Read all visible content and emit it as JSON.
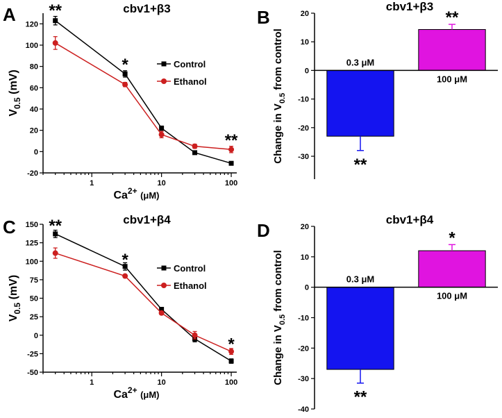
{
  "chart_data": [
    {
      "panel": "A",
      "type": "line",
      "title": "cbv1+β3",
      "xlabel": {
        "main": "Ca",
        "sup": "2+",
        "unit": "(μM)"
      },
      "ylabel": {
        "main": "V",
        "sub": "0.5",
        "unit": " (mV)"
      },
      "xscale": "log",
      "xlim": [
        0.2,
        120
      ],
      "ylim": [
        -20,
        130
      ],
      "xticks": [
        1,
        10,
        100
      ],
      "yticks": [
        -20,
        0,
        20,
        40,
        60,
        80,
        100,
        120
      ],
      "legend": "right",
      "series": [
        {
          "name": "Control",
          "color": "#000000",
          "marker": "square",
          "x": [
            0.3,
            3,
            10,
            30,
            100
          ],
          "y": [
            123,
            73,
            22,
            -1,
            -11
          ],
          "err": [
            4,
            3,
            2,
            1,
            1
          ]
        },
        {
          "name": "Ethanol",
          "color": "#cc1f1f",
          "marker": "circle",
          "x": [
            0.3,
            3,
            10,
            30,
            100
          ],
          "y": [
            102,
            63,
            16,
            5,
            2
          ],
          "err": [
            6,
            2,
            3,
            2,
            3
          ]
        }
      ],
      "annotations": [
        {
          "text": "**",
          "x": 0.3,
          "y": 134
        },
        {
          "text": "*",
          "x": 3,
          "y": 83
        },
        {
          "text": "**",
          "x": 100,
          "y": 12
        }
      ]
    },
    {
      "panel": "B",
      "type": "bar",
      "title": "cbv1+β3",
      "ylabel": {
        "pre": "Change in V",
        "sub": "0.5",
        "post": " from control"
      },
      "ylim": [
        -38,
        20
      ],
      "yticks": [
        -30,
        -20,
        -10,
        0,
        10,
        20
      ],
      "categories": [
        "0.3 μM",
        "100 μM"
      ],
      "values": [
        -23,
        14.3
      ],
      "errors": [
        5,
        1.8
      ],
      "colors": [
        "#1414f0",
        "#e014e0"
      ],
      "annotations": [
        "**",
        "**"
      ]
    },
    {
      "panel": "C",
      "type": "line",
      "title": "cbv1+β4",
      "xlabel": {
        "main": "Ca",
        "sup": "2+",
        "unit": "(μM)"
      },
      "ylabel": {
        "main": "V",
        "sub": "0.5",
        "unit": " (mV)"
      },
      "xscale": "log",
      "xlim": [
        0.2,
        120
      ],
      "ylim": [
        -50,
        150
      ],
      "xticks": [
        1,
        10,
        100
      ],
      "yticks": [
        -50,
        -25,
        0,
        25,
        50,
        75,
        100,
        125,
        150
      ],
      "legend": "right",
      "series": [
        {
          "name": "Control",
          "color": "#000000",
          "marker": "square",
          "x": [
            0.3,
            3,
            10,
            30,
            100
          ],
          "y": [
            137,
            93,
            35,
            -5,
            -35
          ],
          "err": [
            5,
            5,
            2,
            4,
            3
          ]
        },
        {
          "name": "Ethanol",
          "color": "#cc1f1f",
          "marker": "circle",
          "x": [
            0.3,
            3,
            10,
            30,
            100
          ],
          "y": [
            111,
            80,
            30,
            0,
            -22
          ],
          "err": [
            7,
            2,
            2,
            5,
            4
          ]
        }
      ],
      "annotations": [
        {
          "text": "**",
          "x": 0.3,
          "y": 150
        },
        {
          "text": "*",
          "x": 3,
          "y": 104
        },
        {
          "text": "*",
          "x": 100,
          "y": -10
        }
      ]
    },
    {
      "panel": "D",
      "type": "bar",
      "title": "cbv1+β4",
      "ylabel": {
        "pre": "Change in V",
        "sub": "0.5",
        "post": " from control"
      },
      "ylim": [
        -40,
        20
      ],
      "yticks": [
        -40,
        -30,
        -20,
        -10,
        0,
        10,
        20
      ],
      "categories": [
        "0.3 μM",
        "100 μM"
      ],
      "values": [
        -27,
        12
      ],
      "errors": [
        4.5,
        2
      ],
      "colors": [
        "#1414f0",
        "#e014e0"
      ],
      "annotations": [
        "**",
        "*"
      ]
    }
  ]
}
